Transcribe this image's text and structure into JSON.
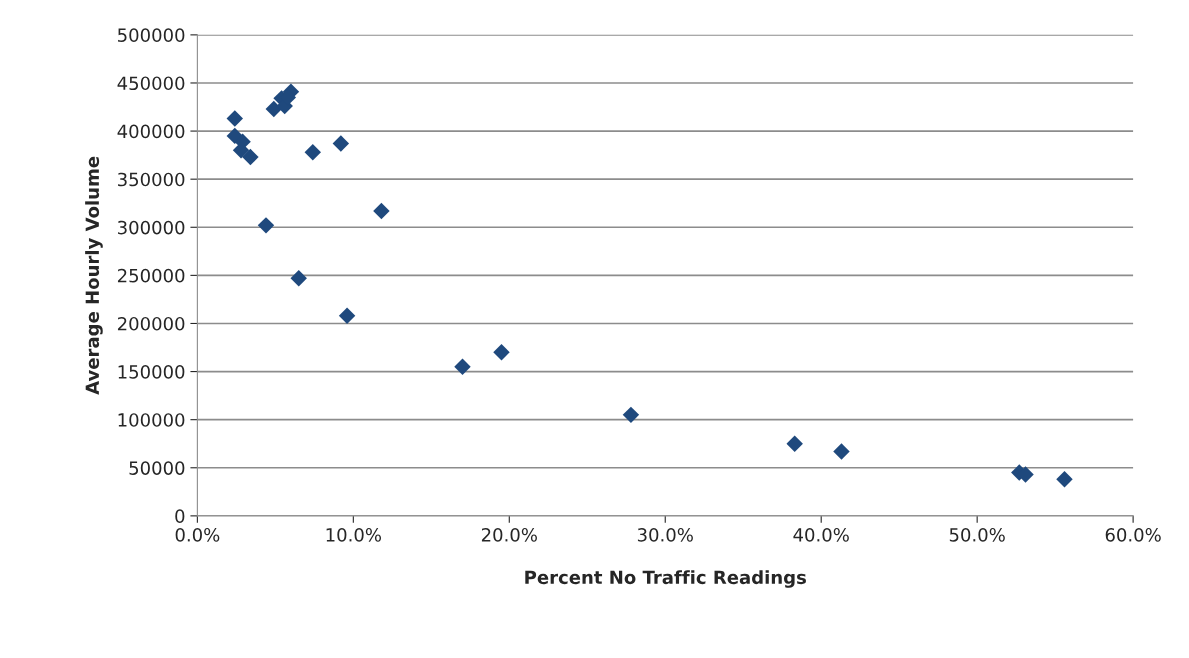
{
  "chart_data": {
    "type": "scatter",
    "xlabel": "Percent No Traffic Readings",
    "ylabel": "Average Hourly Volume",
    "x": [
      2.4,
      2.4,
      2.9,
      2.8,
      3.4,
      4.4,
      4.9,
      5.4,
      5.6,
      6.0,
      5.8,
      6.5,
      7.4,
      9.2,
      9.6,
      11.8,
      17.0,
      19.5,
      27.8,
      38.3,
      41.3,
      52.7,
      53.1,
      55.6
    ],
    "series": [
      {
        "color": "#1f497d",
        "values": [
          413000,
          395000,
          389000,
          380000,
          373000,
          302000,
          423000,
          434000,
          426000,
          441000,
          435000,
          247000,
          378000,
          387000,
          208000,
          317000,
          155000,
          170000,
          105000,
          75000,
          67000,
          45000,
          43000,
          38000
        ]
      }
    ],
    "xlim": [
      0,
      60
    ],
    "xticks": [
      {
        "value": 0,
        "label": "0.0%"
      },
      {
        "value": 10,
        "label": "10.0%"
      },
      {
        "value": 20,
        "label": "20.0%"
      },
      {
        "value": 30,
        "label": "30.0%"
      },
      {
        "value": 40,
        "label": "40.0%"
      },
      {
        "value": 50,
        "label": "50.0%"
      },
      {
        "value": 60,
        "label": "60.0%"
      }
    ],
    "ylim": [
      0,
      500000
    ],
    "yticks": [
      0,
      50000,
      100000,
      150000,
      200000,
      250000,
      300000,
      350000,
      400000,
      450000,
      500000
    ],
    "grid": "y",
    "marker": "diamond"
  }
}
